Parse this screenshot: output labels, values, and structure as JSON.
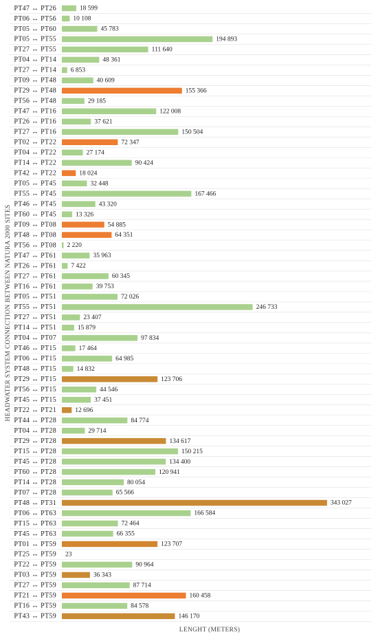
{
  "chart_data": {
    "type": "bar",
    "orientation": "horizontal",
    "y_label": "HEADWATER SYSTEM CONNECTION BETWEEN NATURA 2000 SITES",
    "x_label": "LENGHT (METERS)",
    "xlim": [
      0,
      400000
    ],
    "categories": [
      "PT47 ↔ PT26",
      "PT06 ↔ PT56",
      "PT05 ↔ PT60",
      "PT05 ↔ PT55",
      "PT27 ↔ PT55",
      "PT04 ↔ PT14",
      "PT27 ↔ PT14",
      "PT09 ↔ PT48",
      "PT29 ↔ PT48",
      "PT56 ↔ PT48",
      "PT47 ↔ PT16",
      "PT26 ↔ PT16",
      "PT27 ↔ PT16",
      "PT02 ↔ PT22",
      "PT04 ↔ PT22",
      "PT14 ↔ PT22",
      "PT42 ↔ PT22",
      "PT05 ↔ PT45",
      "PT55 ↔ PT45",
      "PT46 ↔ PT45",
      "PT60 ↔ PT45",
      "PT09 ↔ PT08",
      "PT48 ↔ PT08",
      "PT56 ↔ PT08",
      "PT47 ↔ PT61",
      "PT26 ↔ PT61",
      "PT27 ↔ PT61",
      "PT16 ↔ PT61",
      "PT05 ↔ PT51",
      "PT55 ↔ PT51",
      "PT27 ↔ PT51",
      "PT14 ↔ PT51",
      "PT04 ↔ PT07",
      "PT46 ↔ PT15",
      "PT06 ↔ PT15",
      "PT48 ↔ PT15",
      "PT29 ↔ PT15",
      "PT56 ↔ PT15",
      "PT45 ↔ PT15",
      "PT22 ↔ PT21",
      "PT44 ↔ PT28",
      "PT04 ↔ PT28",
      "PT29 ↔ PT28",
      "PT15 ↔ PT28",
      "PT45 ↔ PT28",
      "PT60 ↔ PT28",
      "PT14 ↔ PT28",
      "PT07 ↔ PT28",
      "PT48 ↔ PT31",
      "PT06 ↔ PT63",
      "PT15 ↔ PT63",
      "PT45 ↔ PT63",
      "PT01 ↔ PT59",
      "PT25 ↔ PT59",
      "PT22 ↔ PT59",
      "PT03 ↔ PT59",
      "PT27 ↔ PT59",
      "PT21 ↔ PT59",
      "PT16 ↔ PT59",
      "PT43 ↔ PT59"
    ],
    "values": [
      18599,
      10108,
      45783,
      194893,
      111640,
      48361,
      6853,
      40609,
      155366,
      29185,
      122008,
      37621,
      150504,
      72347,
      27174,
      90424,
      18024,
      32448,
      167466,
      43320,
      13326,
      54885,
      64351,
      2220,
      35963,
      7422,
      60345,
      39753,
      72026,
      246733,
      23407,
      15879,
      97834,
      17464,
      64985,
      14832,
      123706,
      44546,
      37451,
      12696,
      84774,
      29714,
      134617,
      150215,
      134400,
      120941,
      80054,
      65566,
      343027,
      166584,
      72464,
      66355,
      123707,
      23,
      90964,
      36343,
      87714,
      160458,
      84578,
      146170
    ],
    "value_labels": [
      "18 599",
      "10 108",
      "45 783",
      "194 893",
      "111 640",
      "48 361",
      "6 853",
      "40 609",
      "155 366",
      "29 185",
      "122 008",
      "37 621",
      "150 504",
      "72 347",
      "27 174",
      "90 424",
      "18 024",
      "32 448",
      "167 466",
      "43 320",
      "13 326",
      "54 885",
      "64 351",
      "2 220",
      "35 963",
      "7 422",
      "60 345",
      "39 753",
      "72 026",
      "246 733",
      "23 407",
      "15 879",
      "97 834",
      "17 464",
      "64 985",
      "14 832",
      "123 706",
      "44 546",
      "37 451",
      "12 696",
      "84 774",
      "29 714",
      "134 617",
      "150 215",
      "134 400",
      "120 941",
      "80 054",
      "65 566",
      "343 027",
      "166 584",
      "72 464",
      "66 355",
      "123 707",
      "23",
      "90 964",
      "36 343",
      "87 714",
      "160 458",
      "84 578",
      "146 170"
    ],
    "colors": [
      "#a9d18e",
      "#a9d18e",
      "#a9d18e",
      "#a9d18e",
      "#a9d18e",
      "#a9d18e",
      "#a9d18e",
      "#a9d18e",
      "#ed7d31",
      "#a9d18e",
      "#a9d18e",
      "#a9d18e",
      "#a9d18e",
      "#ed7d31",
      "#a9d18e",
      "#a9d18e",
      "#ed7d31",
      "#a9d18e",
      "#a9d18e",
      "#a9d18e",
      "#a9d18e",
      "#ed7d31",
      "#ed7d31",
      "#a9d18e",
      "#a9d18e",
      "#a9d18e",
      "#a9d18e",
      "#a9d18e",
      "#a9d18e",
      "#a9d18e",
      "#a9d18e",
      "#a9d18e",
      "#a9d18e",
      "#a9d18e",
      "#a9d18e",
      "#a9d18e",
      "#c98a35",
      "#a9d18e",
      "#a9d18e",
      "#c98a35",
      "#a9d18e",
      "#a9d18e",
      "#c98a35",
      "#a9d18e",
      "#a9d18e",
      "#a9d18e",
      "#a9d18e",
      "#a9d18e",
      "#c98a35",
      "#a9d18e",
      "#a9d18e",
      "#a9d18e",
      "#d2862f",
      "#a9d18e",
      "#a9d18e",
      "#c98a35",
      "#a9d18e",
      "#ed7d31",
      "#a9d18e",
      "#c98a35"
    ]
  }
}
